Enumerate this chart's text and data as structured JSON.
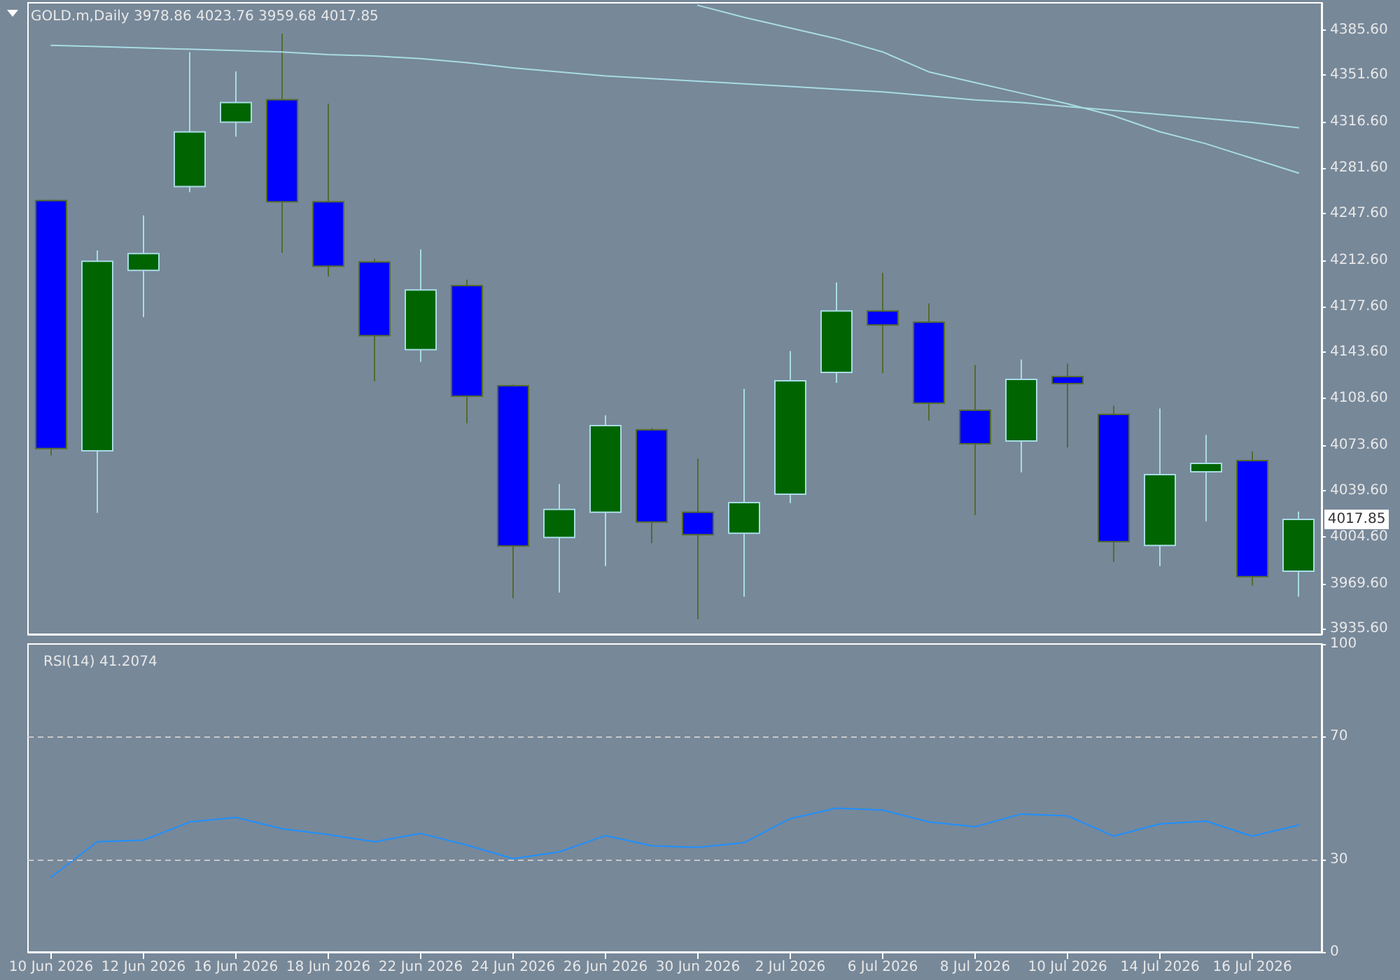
{
  "chart_data": [
    {
      "type": "candlestick",
      "title": "GOLD.m,Daily 3978.86 4023.76 3959.68 4017.85",
      "tick_labels": "y",
      "marker": "none",
      "ylim": [
        3931.6,
        4405.9
      ],
      "yticks": [
        {
          "value": 3935.6,
          "label": "3935.60"
        },
        {
          "value": 3969.6,
          "label": "3969.60"
        },
        {
          "value": 4004.6,
          "label": "4004.60"
        },
        {
          "value": 4039.6,
          "label": "4039.60"
        },
        {
          "value": 4073.6,
          "label": "4073.60"
        },
        {
          "value": 4108.6,
          "label": "4108.60"
        },
        {
          "value": 4143.6,
          "label": "4143.60"
        },
        {
          "value": 4177.6,
          "label": "4177.60"
        },
        {
          "value": 4212.6,
          "label": "4212.60"
        },
        {
          "value": 4247.6,
          "label": "4247.60"
        },
        {
          "value": 4281.6,
          "label": "4281.60"
        },
        {
          "value": 4316.6,
          "label": "4316.60"
        },
        {
          "value": 4351.6,
          "label": "4351.60"
        },
        {
          "value": 4385.6,
          "label": "4385.60"
        }
      ],
      "annotations": [
        "4017.85"
      ],
      "series": [
        {
          "ohlc": [
            [
              4257.4,
              4258.0,
              4065.8,
              4071.1
            ],
            [
              4069.4,
              4219.9,
              4022.7,
              4211.8
            ],
            [
              4204.9,
              4246.2,
              4169.8,
              4217.5
            ],
            [
              4267.9,
              4368.8,
              4263.7,
              4308.9
            ],
            [
              4316.3,
              4354.4,
              4305.3,
              4331.0
            ],
            [
              4333.1,
              4382.8,
              4218.1,
              4256.4
            ],
            [
              4256.4,
              4330.2,
              4200.3,
              4208.1
            ],
            [
              4211.2,
              4213.6,
              4121.5,
              4155.9
            ],
            [
              4145.3,
              4220.7,
              4136.2,
              4190.2
            ],
            [
              4193.4,
              4197.9,
              4090.0,
              4110.4
            ],
            [
              4118.3,
              4119.0,
              3958.7,
              3997.9
            ],
            [
              4004.3,
              4044.5,
              3962.9,
              4025.3
            ],
            [
              4023.2,
              4096.0,
              3982.8,
              4088.3
            ],
            [
              4085.2,
              4086.5,
              4000.0,
              4015.8
            ],
            [
              4023.2,
              4063.4,
              3942.9,
              4006.4
            ],
            [
              4007.4,
              4115.9,
              3959.7,
              4030.5
            ],
            [
              4036.8,
              4144.3,
              4030.1,
              4121.9
            ],
            [
              4128.2,
              4195.8,
              4120.4,
              4174.4
            ],
            [
              4174.4,
              4203.1,
              4127.8,
              4163.9
            ],
            [
              4166.0,
              4180.0,
              4092.1,
              4105.1
            ],
            [
              4099.9,
              4133.8,
              4021.1,
              4074.6
            ],
            [
              4076.7,
              4138.0,
              4053.2,
              4123.0
            ],
            [
              4125.1,
              4134.8,
              4071.8,
              4119.8
            ],
            [
              4096.7,
              4103.3,
              3986.0,
              4001.1
            ],
            [
              3998.3,
              4101.2,
              3982.8,
              4051.5
            ],
            [
              4053.6,
              4081.3,
              4016.4,
              4059.9
            ],
            [
              4062.0,
              4069.0,
              3968.1,
              3974.9
            ],
            [
              3978.86,
              4023.76,
              3959.68,
              4017.85
            ]
          ],
          "colors": [
            "#0000ff",
            "#006400",
            "#006400",
            "#006400",
            "#006400",
            "#0000ff",
            "#0000ff",
            "#0000ff",
            "#006400",
            "#0000ff",
            "#0000ff",
            "#006400",
            "#006400",
            "#0000ff",
            "#0000ff",
            "#006400",
            "#006400",
            "#006400",
            "#0000ff",
            "#0000ff",
            "#0000ff",
            "#006400",
            "#0000ff",
            "#0000ff",
            "#006400",
            "#006400",
            "#0000ff",
            "#006400"
          ]
        },
        {
          "type": "line",
          "color": "#a8dce4",
          "values": [
            4374,
            4373,
            4372,
            4371,
            4370,
            4369,
            4367,
            4366,
            4364,
            4361,
            4357,
            4354,
            4351,
            4349,
            4347,
            4345,
            4343,
            4341,
            4339,
            4336,
            4333,
            4331,
            4328,
            4325,
            4322,
            4319,
            4316,
            4312
          ]
        },
        {
          "type": "line",
          "color": "#a8dce4",
          "values": [
            null,
            null,
            null,
            null,
            null,
            null,
            null,
            null,
            null,
            null,
            null,
            null,
            null,
            null,
            4404,
            4395,
            4387,
            4379,
            4369,
            4354,
            4346,
            4338,
            4330,
            4321,
            4309,
            4300,
            4289,
            4278
          ]
        }
      ]
    },
    {
      "type": "line",
      "title": "RSI(14) 41.2074",
      "marker": "none",
      "color": "#1e90ff",
      "categories": [
        "10 Jun 2026",
        null,
        "12 Jun 2026",
        null,
        "16 Jun 2026",
        null,
        "18 Jun 2026",
        null,
        "22 Jun 2026",
        null,
        "24 Jun 2026",
        null,
        "26 Jun 2026",
        null,
        "30 Jun 2026",
        null,
        "2 Jul 2026",
        null,
        "6 Jul 2026",
        null,
        "8 Jul 2026",
        null,
        "10 Jul 2026",
        null,
        "14 Jul 2026",
        null,
        "16 Jul 2026",
        null
      ],
      "values": [
        24.3,
        35.8,
        36.3,
        42.2,
        43.7,
        40.0,
        38.1,
        35.8,
        38.5,
        34.7,
        30.3,
        32.5,
        37.8,
        34.5,
        34.0,
        35.5,
        43.3,
        46.7,
        46.1,
        42.2,
        40.7,
        44.8,
        44.2,
        37.6,
        41.6,
        42.5,
        37.6,
        41.2
      ],
      "ylim": [
        0,
        100
      ],
      "yticks": [
        0,
        30,
        70,
        100
      ],
      "ref_lines": [
        {
          "axis": "y",
          "value": 70,
          "color": "#c8c8c8",
          "line_style": "dashed"
        },
        {
          "axis": "y",
          "value": 30,
          "color": "#c8c8c8",
          "line_style": "dashed"
        }
      ]
    }
  ]
}
